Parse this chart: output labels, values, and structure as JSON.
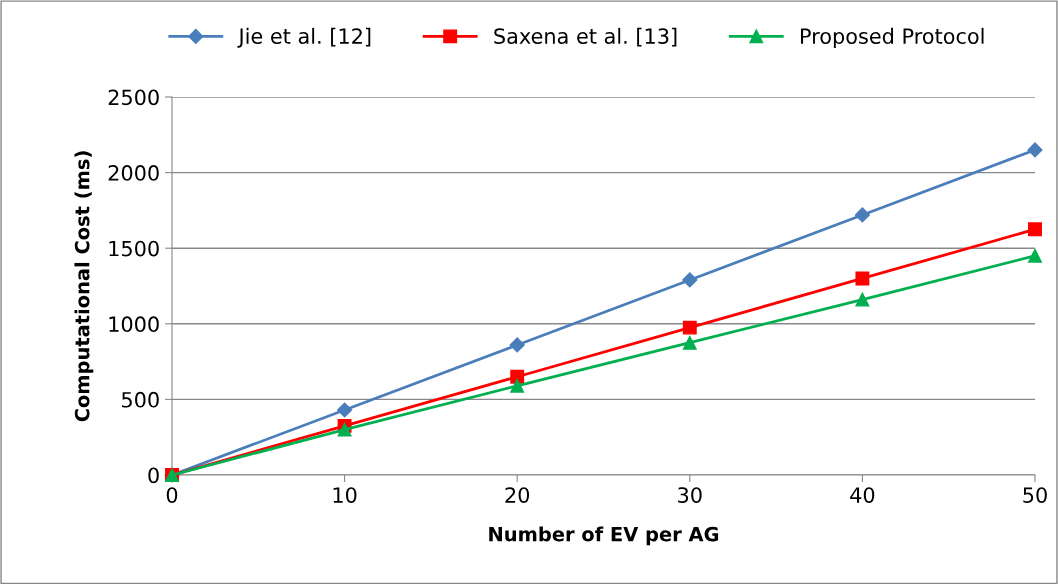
{
  "chart_data": {
    "type": "line",
    "xlabel": "Number of EV per AG",
    "ylabel": "Computational Cost (ms)",
    "x": [
      0,
      10,
      20,
      30,
      40,
      50
    ],
    "series": [
      {
        "name": "Jie et al. [12]",
        "color": "#4a7ebb",
        "marker": "diamond",
        "values": [
          0,
          430,
          860,
          1290,
          1720,
          2150
        ]
      },
      {
        "name": "Saxena et al. [13]",
        "color": "#ff0000",
        "marker": "square",
        "values": [
          0,
          325,
          650,
          975,
          1300,
          1625
        ]
      },
      {
        "name": "Proposed Protocol",
        "color": "#00b050",
        "marker": "triangle",
        "values": [
          0,
          300,
          590,
          875,
          1160,
          1450
        ]
      }
    ],
    "xlim": [
      0,
      50
    ],
    "xticks": [
      0,
      10,
      20,
      30,
      40,
      50
    ],
    "ylim": [
      0,
      2500
    ],
    "yticks": [
      0,
      500,
      1000,
      1500,
      2000,
      2500
    ],
    "grid": "y",
    "legend": "top",
    "line_style": "solid"
  }
}
